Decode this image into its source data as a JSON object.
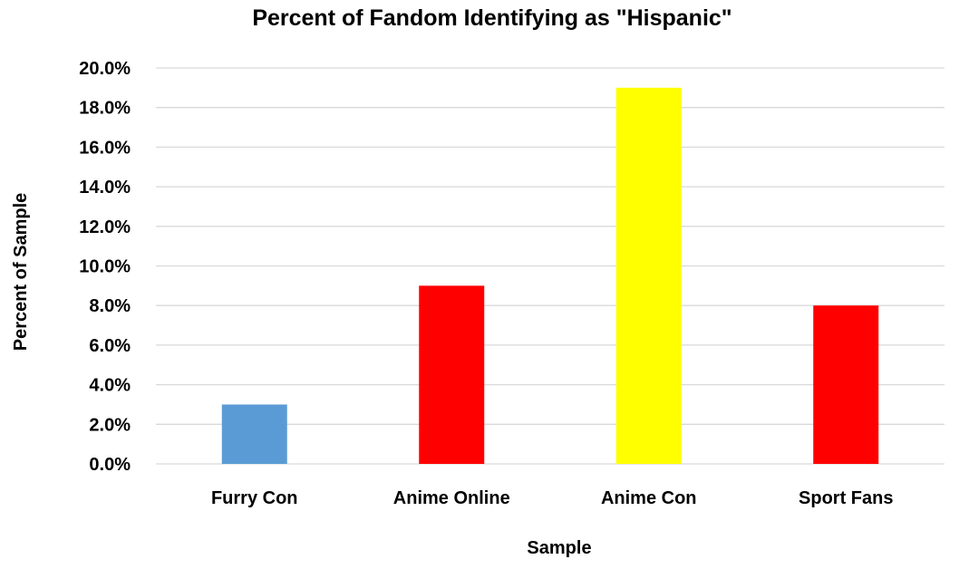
{
  "chart_data": {
    "type": "bar",
    "title": "Percent of Fandom Identifying as \"Hispanic\"",
    "xlabel": "Sample",
    "ylabel": "Percent of Sample",
    "categories": [
      "Furry Con",
      "Anime Online",
      "Anime Con",
      "Sport Fans"
    ],
    "values": [
      3.0,
      9.0,
      19.0,
      8.0
    ],
    "bar_colors": [
      "#5b9bd5",
      "#ff0000",
      "#ffff00",
      "#ff0000"
    ],
    "ylim": [
      0,
      20
    ],
    "y_ticks": [
      0,
      2,
      4,
      6,
      8,
      10,
      12,
      14,
      16,
      18,
      20
    ],
    "y_tick_labels": [
      "0.0%",
      "2.0%",
      "4.0%",
      "6.0%",
      "8.0%",
      "10.0%",
      "12.0%",
      "14.0%",
      "16.0%",
      "18.0%",
      "20.0%"
    ],
    "grid": true,
    "legend": "none"
  }
}
